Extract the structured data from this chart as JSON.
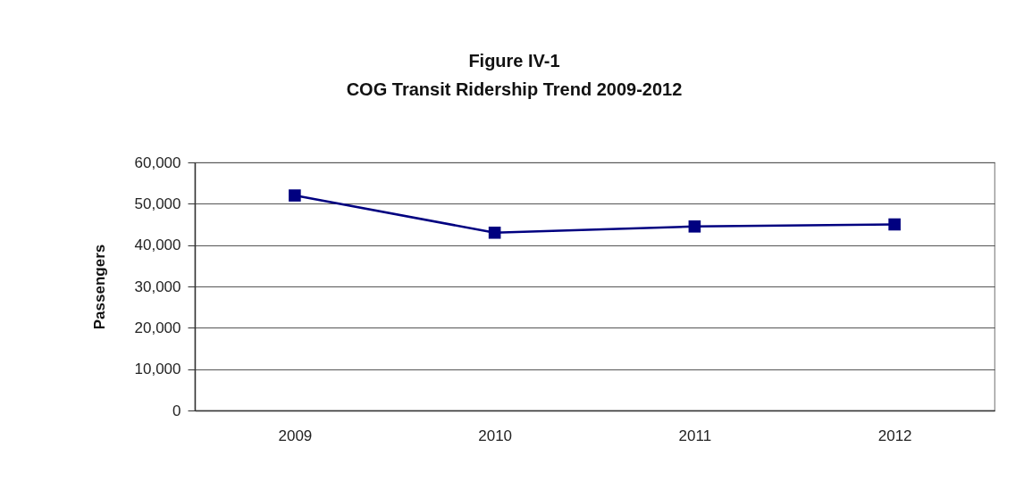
{
  "chart_data": {
    "type": "line",
    "title": "Figure IV-1",
    "subtitle": "COG Transit Ridership Trend  2009-2012",
    "ylabel": "Passengers",
    "categories": [
      "2009",
      "2010",
      "2011",
      "2012"
    ],
    "series": [
      {
        "color": "#000080",
        "values": [
          52000,
          43000,
          44500,
          45000
        ]
      }
    ],
    "ylim": [
      0,
      60000
    ],
    "yticks": [
      0,
      {
        "value": 10000,
        "label": "10,000"
      },
      {
        "value": 20000,
        "label": "20,000"
      },
      {
        "value": 30000,
        "label": "30,000"
      },
      {
        "value": 40000,
        "label": "40,000"
      },
      {
        "value": 50000,
        "label": "50,000"
      },
      {
        "value": 60000,
        "label": "60,000"
      }
    ],
    "grid": "y",
    "marker": "square",
    "line_style": "solid"
  }
}
